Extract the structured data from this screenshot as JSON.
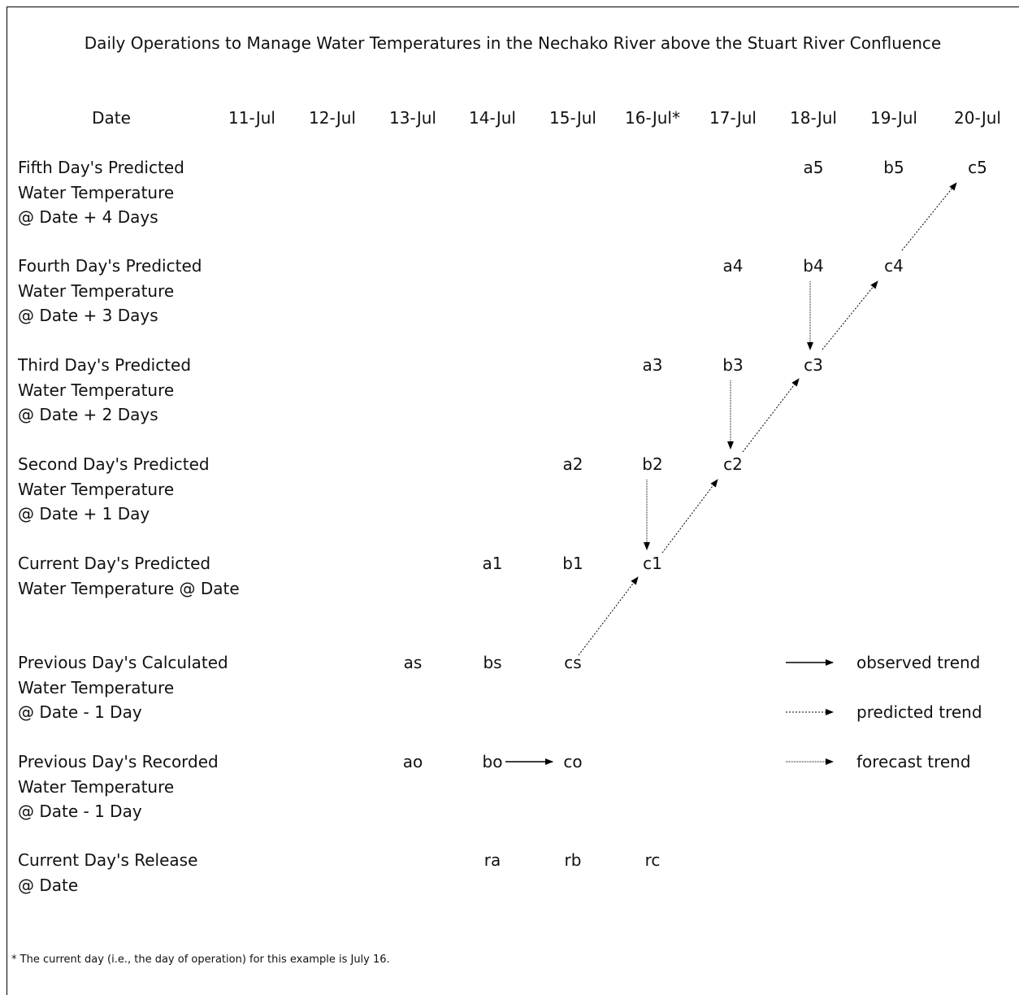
{
  "title": "Daily Operations to Manage Water Temperatures in the Nechako River above the Stuart River Confluence",
  "date_header": "Date",
  "dates": [
    "11-Jul",
    "12-Jul",
    "13-Jul",
    "14-Jul",
    "15-Jul",
    "16-Jul*",
    "17-Jul",
    "18-Jul",
    "19-Jul",
    "20-Jul"
  ],
  "rows": [
    {
      "lines": [
        "Fifth Day's Predicted",
        "Water Temperature",
        "@ Date + 4 Days"
      ],
      "cells": [
        {
          "col": 7,
          "text": "a5"
        },
        {
          "col": 8,
          "text": "b5"
        },
        {
          "col": 9,
          "text": "c5"
        }
      ]
    },
    {
      "lines": [
        "Fourth Day's Predicted",
        "Water Temperature",
        "@ Date + 3 Days"
      ],
      "cells": [
        {
          "col": 6,
          "text": "a4"
        },
        {
          "col": 7,
          "text": "b4"
        },
        {
          "col": 8,
          "text": "c4"
        }
      ]
    },
    {
      "lines": [
        "Third Day's Predicted",
        "Water Temperature",
        "@ Date + 2 Days"
      ],
      "cells": [
        {
          "col": 5,
          "text": "a3"
        },
        {
          "col": 6,
          "text": "b3"
        },
        {
          "col": 7,
          "text": "c3"
        }
      ]
    },
    {
      "lines": [
        "Second Day's Predicted",
        "Water Temperature",
        "@ Date + 1 Day"
      ],
      "cells": [
        {
          "col": 4,
          "text": "a2"
        },
        {
          "col": 5,
          "text": "b2"
        },
        {
          "col": 6,
          "text": "c2"
        }
      ]
    },
    {
      "lines": [
        "Current Day's Predicted",
        "Water Temperature @ Date"
      ],
      "cells": [
        {
          "col": 3,
          "text": "a1"
        },
        {
          "col": 4,
          "text": "b1"
        },
        {
          "col": 5,
          "text": "c1"
        }
      ]
    },
    {
      "lines": [
        "Previous Day's Calculated",
        "Water Temperature",
        "@ Date - 1 Day"
      ],
      "cells": [
        {
          "col": 2,
          "text": "as"
        },
        {
          "col": 3,
          "text": "bs"
        },
        {
          "col": 4,
          "text": "cs"
        }
      ]
    },
    {
      "lines": [
        "Previous Day's Recorded",
        "Water Temperature",
        "@ Date - 1 Day"
      ],
      "cells": [
        {
          "col": 2,
          "text": "ao"
        },
        {
          "col": 3,
          "text": "bo"
        },
        {
          "col": 4,
          "text": "co"
        }
      ]
    },
    {
      "lines": [
        "Current Day's Release",
        "@ Date"
      ],
      "cells": [
        {
          "col": 3,
          "text": "ra"
        },
        {
          "col": 4,
          "text": "rb"
        },
        {
          "col": 5,
          "text": "rc"
        }
      ]
    }
  ],
  "legend": [
    {
      "label": "observed trend",
      "style": "solid"
    },
    {
      "label": "predicted trend",
      "style": "dotted"
    },
    {
      "label": "forecast trend",
      "style": "fine-dotted"
    }
  ],
  "footnote": "* The current day (i.e., the day of operation) for this example is July 16."
}
